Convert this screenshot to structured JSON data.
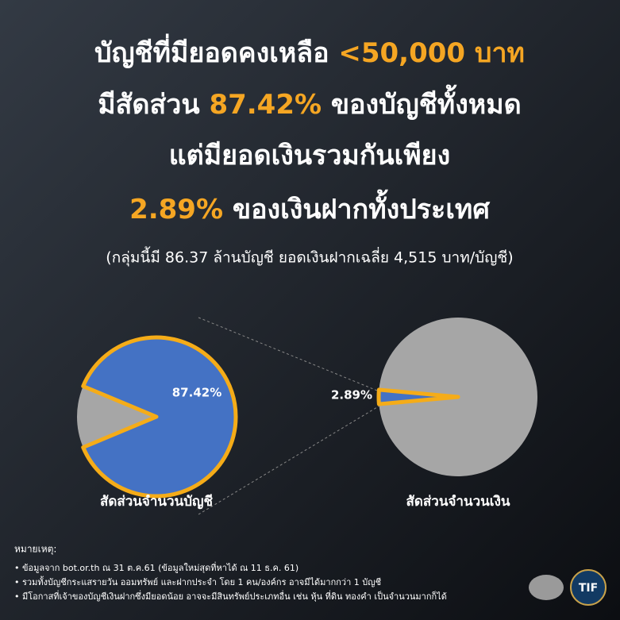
{
  "header": {
    "lines": [
      [
        "บัญชีที่มียอดคงเหลือ ",
        "<50,000 บาท"
      ],
      [
        "มีสัดส่วน ",
        "87.42%",
        " ของบัญชีทั้งหมด"
      ],
      [
        "แต่มียอดเงินรวมกันเพียง"
      ],
      [
        "2.89%",
        " ของเงินฝากทั้งประเทศ"
      ]
    ],
    "subtitle": "(กลุ่มนี้มี 86.37 ล้านบัญชี ยอดเงินฝากเฉลี่ย 4,515 บาท/บัญชี)"
  },
  "chart_data": [
    {
      "type": "pie",
      "title": "สัดส่วนจำนวนบัญชี",
      "categories": [
        null,
        null
      ],
      "values": [
        87.42,
        12.58
      ],
      "value_labels": [
        "87.42%",
        null
      ],
      "colors": [
        "#4472c4",
        "#a6a6a6"
      ],
      "highlight": 0
    },
    {
      "type": "pie",
      "title": "สัดส่วนจำนวนเงิน",
      "categories": [
        null,
        null
      ],
      "values": [
        2.89,
        97.11
      ],
      "value_labels": [
        "2.89%",
        null
      ],
      "colors": [
        "#4472c4",
        "#a6a6a6"
      ],
      "highlight": 0
    }
  ],
  "notes": {
    "heading": "หมายเหตุ:",
    "items": [
      "• ข้อมูลจาก bot.or.th ณ 31 ต.ค.61 (ข้อมูลใหม่สุดที่หาได้ ณ 11 ธ.ค. 61)",
      "• รวมทั้งบัญชีกระแสรายวัน ออมทรัพย์ และฝากประจำ โดย 1 คน/องค์กร อาจมีได้มากกว่า 1 บัญชี",
      "• มีโอกาสที่เจ้าของบัญชีเงินฝากซึ่งมียอดน้อย อาจจะมีสินทรัพย์ประเภทอื่น เช่น หุ้น ที่ดิน ทองคำ เป็นจำนวนมากก็ได้"
    ]
  },
  "logo": "TIF"
}
